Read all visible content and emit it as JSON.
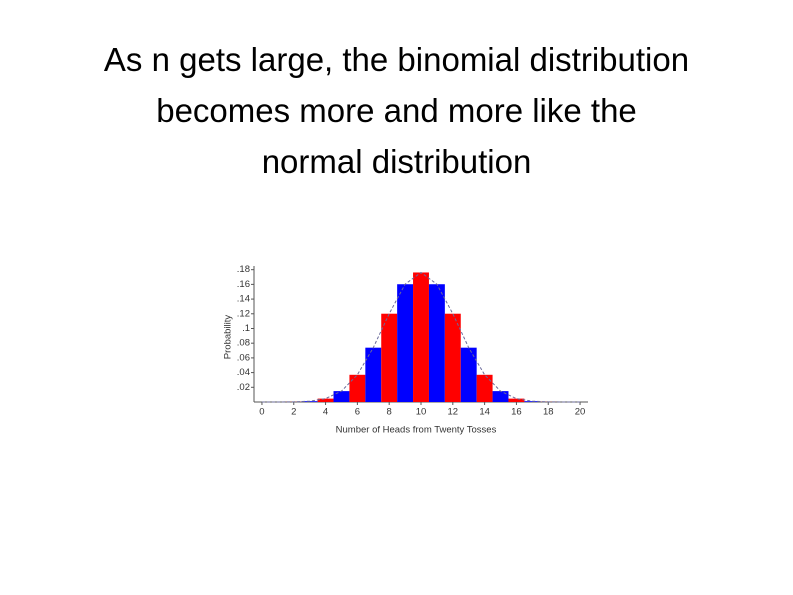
{
  "chart_data": {
    "type": "bar",
    "title": "As n gets large, the binomial distribution\nbecomes more and more like the\nnormal distribution",
    "xlabel": "Number of Heads from Twenty Tosses",
    "ylabel": "Probability",
    "categories": [
      0,
      1,
      2,
      3,
      4,
      5,
      6,
      7,
      8,
      9,
      10,
      11,
      12,
      13,
      14,
      15,
      16,
      17,
      18,
      19,
      20
    ],
    "values": [
      1e-06,
      2e-05,
      0.0002,
      0.0011,
      0.0046,
      0.0148,
      0.037,
      0.0739,
      0.1201,
      0.1602,
      0.1762,
      0.1602,
      0.1201,
      0.0739,
      0.037,
      0.0148,
      0.0046,
      0.0011,
      0.0002,
      2e-05,
      1e-06
    ],
    "colors": [
      "#ff0000",
      "#0000ff",
      "#ff0000",
      "#0000ff",
      "#ff0000",
      "#0000ff",
      "#ff0000",
      "#0000ff",
      "#ff0000",
      "#0000ff",
      "#ff0000",
      "#0000ff",
      "#ff0000",
      "#0000ff",
      "#ff0000",
      "#0000ff",
      "#ff0000",
      "#0000ff",
      "#ff0000",
      "#0000ff",
      "#ff0000"
    ],
    "xlim": [
      -0.5,
      20.5
    ],
    "xticks": [
      0,
      2,
      4,
      6,
      8,
      10,
      12,
      14,
      16,
      18,
      20
    ],
    "ylim": [
      0,
      0.185
    ],
    "yticks": [
      {
        "value": 0.02,
        "label": ".02"
      },
      {
        "value": 0.04,
        "label": ".04"
      },
      {
        "value": 0.06,
        "label": ".06"
      },
      {
        "value": 0.08,
        "label": ".08"
      },
      {
        "value": 0.1,
        "label": ".1"
      },
      {
        "value": 0.12,
        "label": ".12"
      },
      {
        "value": 0.14,
        "label": ".14"
      },
      {
        "value": 0.16,
        "label": ".16"
      },
      {
        "value": 0.18,
        "label": ".18"
      }
    ],
    "curve_color": "#6a6a9a"
  }
}
